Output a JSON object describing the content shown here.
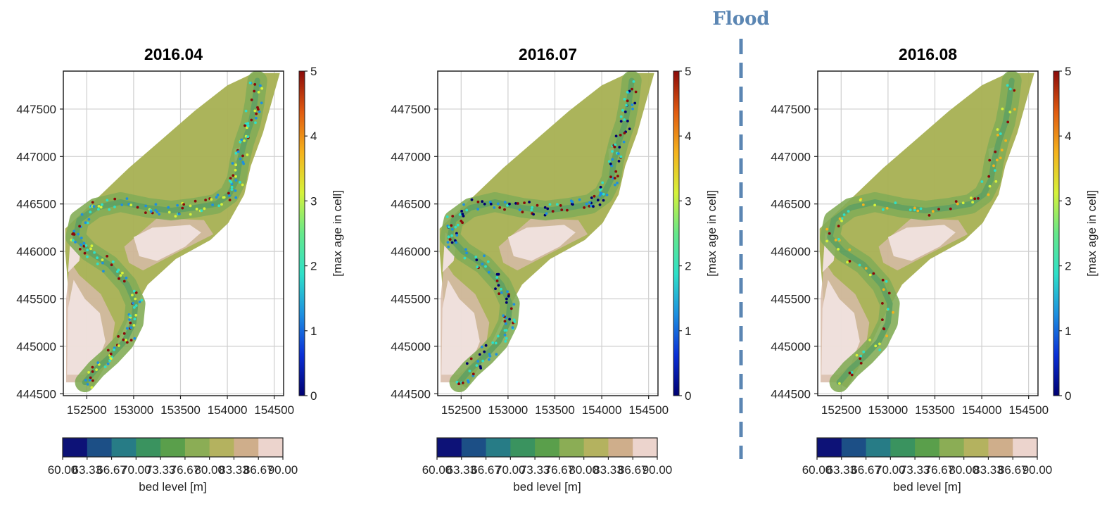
{
  "flood": {
    "label": "Flood",
    "color": "#5b86b3"
  },
  "colors": {
    "bed_levels": [
      "#0d1277",
      "#1c4f86",
      "#277c86",
      "#3a935f",
      "#5a9f4b",
      "#8bad55",
      "#b4b25f",
      "#cfae8b",
      "#ecd4cd"
    ],
    "age": [
      "#000070",
      "#0a2fd6",
      "#1d8fe0",
      "#2ee0c8",
      "#66e88a",
      "#d6f23a",
      "#f5b21c",
      "#e05a10",
      "#8b0a0a"
    ],
    "terrain_high": "#efe0db",
    "terrain_mid": "#d6b9a4",
    "terrain_plain": "#a9b256",
    "terrain_green": "#7faa52",
    "channel": "#5f9f5c"
  },
  "chart_data": [
    {
      "type": "scatter",
      "title": "2016.04",
      "xlim": [
        152250,
        154600
      ],
      "ylim": [
        444480,
        447900
      ],
      "xticks": [
        "152500",
        "153000",
        "153500",
        "154000",
        "154500"
      ],
      "xtick_values": [
        152500,
        153000,
        153500,
        154000,
        154500
      ],
      "yticks": [
        "444500",
        "445000",
        "445500",
        "446000",
        "446500",
        "447000",
        "447500"
      ],
      "ytick_values": [
        444500,
        445000,
        445500,
        446000,
        446500,
        447000,
        447500
      ],
      "colorbar": {
        "label": "[max age in cell]",
        "ticks": [
          "0",
          "1",
          "2",
          "3",
          "4",
          "5"
        ],
        "range": [
          0,
          5
        ]
      },
      "bed_colorbar": {
        "label": "bed level [m]",
        "ticks": [
          "60.00",
          "63.33",
          "66.67",
          "70.00",
          "73.33",
          "76.67",
          "80.00",
          "83.33",
          "86.67",
          "90.00"
        ]
      },
      "vegetation": {
        "density": 0.95,
        "ages": [
          1,
          2,
          3,
          5
        ]
      }
    },
    {
      "type": "scatter",
      "title": "2016.07",
      "xlim": [
        152250,
        154600
      ],
      "ylim": [
        444480,
        447900
      ],
      "xticks": [
        "152500",
        "153000",
        "153500",
        "154000",
        "154500"
      ],
      "xtick_values": [
        152500,
        153000,
        153500,
        154000,
        154500
      ],
      "yticks": [
        "444500",
        "445000",
        "445500",
        "446000",
        "446500",
        "447000",
        "447500"
      ],
      "ytick_values": [
        444500,
        445000,
        445500,
        446000,
        446500,
        447000,
        447500
      ],
      "colorbar": {
        "label": "[max age in cell]",
        "ticks": [
          "0",
          "1",
          "2",
          "3",
          "4",
          "5"
        ],
        "range": [
          0,
          5
        ]
      },
      "bed_colorbar": {
        "label": "bed level [m]",
        "ticks": [
          "60.00",
          "63.33",
          "66.67",
          "70.00",
          "73.33",
          "76.67",
          "80.00",
          "83.33",
          "86.67",
          "90.00"
        ]
      },
      "vegetation": {
        "density": 1.0,
        "ages": [
          0,
          1,
          2,
          5
        ]
      }
    },
    {
      "type": "scatter",
      "title": "2016.08",
      "xlim": [
        152250,
        154600
      ],
      "ylim": [
        444480,
        447900
      ],
      "xticks": [
        "152500",
        "153000",
        "153500",
        "154000",
        "154500"
      ],
      "xtick_values": [
        152500,
        153000,
        153500,
        154000,
        154500
      ],
      "yticks": [
        "444500",
        "445000",
        "445500",
        "446000",
        "446500",
        "447000",
        "447500"
      ],
      "ytick_values": [
        444500,
        445000,
        445500,
        446000,
        446500,
        447000,
        447500
      ],
      "colorbar": {
        "label": "[max age in cell]",
        "ticks": [
          "0",
          "1",
          "2",
          "3",
          "4",
          "5"
        ],
        "range": [
          0,
          5
        ]
      },
      "bed_colorbar": {
        "label": "bed level [m]",
        "ticks": [
          "60.00",
          "63.33",
          "66.67",
          "70.00",
          "73.33",
          "76.67",
          "80.00",
          "83.33",
          "86.67",
          "90.00"
        ]
      },
      "vegetation": {
        "density": 0.45,
        "ages": [
          2,
          3,
          4,
          5
        ]
      }
    }
  ]
}
